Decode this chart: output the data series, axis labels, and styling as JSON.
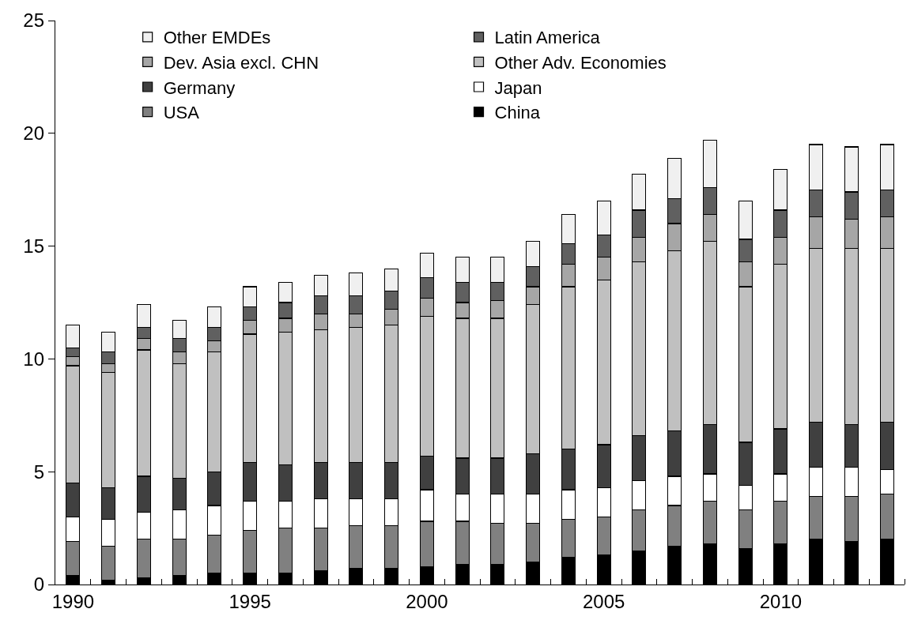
{
  "chart_data": {
    "type": "bar",
    "stacked": true,
    "categories": [
      "1990",
      null,
      null,
      null,
      null,
      "1995",
      null,
      null,
      null,
      null,
      "2000",
      null,
      null,
      null,
      null,
      "2005",
      null,
      null,
      null,
      null,
      "2010",
      null,
      null,
      null
    ],
    "series": [
      {
        "name": "China",
        "color": "#000000",
        "values": [
          0.4,
          0.2,
          0.3,
          0.4,
          0.5,
          0.5,
          0.5,
          0.6,
          0.7,
          0.7,
          0.8,
          0.9,
          0.9,
          1.0,
          1.2,
          1.3,
          1.5,
          1.7,
          1.8,
          1.6,
          1.8,
          2.0,
          1.9,
          2.0
        ]
      },
      {
        "name": "USA",
        "color": "#808080",
        "values": [
          1.5,
          1.5,
          1.7,
          1.6,
          1.7,
          1.9,
          2.0,
          1.9,
          1.9,
          1.9,
          2.0,
          1.9,
          1.8,
          1.7,
          1.7,
          1.7,
          1.8,
          1.8,
          1.9,
          1.7,
          1.9,
          1.9,
          2.0,
          2.0
        ]
      },
      {
        "name": "Japan",
        "color": "#ffffff",
        "values": [
          1.1,
          1.2,
          1.2,
          1.3,
          1.3,
          1.3,
          1.2,
          1.3,
          1.2,
          1.2,
          1.4,
          1.2,
          1.3,
          1.3,
          1.3,
          1.3,
          1.3,
          1.3,
          1.2,
          1.1,
          1.2,
          1.3,
          1.3,
          1.1
        ]
      },
      {
        "name": "Germany",
        "color": "#404040",
        "values": [
          1.5,
          1.4,
          1.6,
          1.4,
          1.5,
          1.7,
          1.6,
          1.6,
          1.6,
          1.6,
          1.5,
          1.6,
          1.6,
          1.8,
          1.8,
          1.9,
          2.0,
          2.0,
          2.2,
          1.9,
          2.0,
          2.0,
          1.9,
          2.1
        ]
      },
      {
        "name": "Other Adv. Economies",
        "color": "#c0c0c0",
        "values": [
          5.2,
          5.1,
          5.6,
          5.1,
          5.3,
          5.7,
          5.9,
          5.9,
          6.0,
          6.1,
          6.2,
          6.2,
          6.2,
          6.6,
          7.2,
          7.3,
          7.7,
          8.0,
          8.1,
          6.9,
          7.3,
          7.7,
          7.8,
          7.7
        ]
      },
      {
        "name": "Dev. Asia excl. CHN",
        "color": "#a6a6a6",
        "values": [
          0.4,
          0.4,
          0.5,
          0.5,
          0.5,
          0.6,
          0.6,
          0.7,
          0.6,
          0.7,
          0.8,
          0.7,
          0.8,
          0.8,
          1.0,
          1.0,
          1.1,
          1.2,
          1.2,
          1.1,
          1.2,
          1.4,
          1.3,
          1.4
        ]
      },
      {
        "name": "Latin America",
        "color": "#606060",
        "values": [
          0.4,
          0.5,
          0.5,
          0.6,
          0.6,
          0.6,
          0.7,
          0.8,
          0.8,
          0.8,
          0.9,
          0.9,
          0.8,
          0.9,
          0.9,
          1.0,
          1.2,
          1.1,
          1.2,
          1.0,
          1.2,
          1.2,
          1.2,
          1.2
        ]
      },
      {
        "name": "Other EMDEs",
        "color": "#f0f0f0",
        "values": [
          1.0,
          0.9,
          1.0,
          0.8,
          0.9,
          0.9,
          0.9,
          0.9,
          1.0,
          1.0,
          1.1,
          1.1,
          1.1,
          1.1,
          1.3,
          1.5,
          1.6,
          1.8,
          2.1,
          1.7,
          1.8,
          2.0,
          2.0,
          2.0
        ]
      }
    ],
    "ylim": [
      0,
      25
    ],
    "yticks": [
      0,
      5,
      10,
      15,
      20,
      25
    ],
    "grid": false,
    "legend": "top left"
  }
}
